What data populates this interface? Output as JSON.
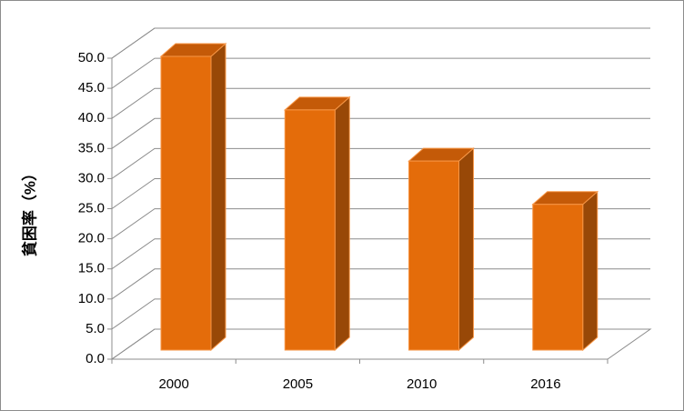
{
  "chart_data": {
    "type": "bar3d",
    "y_label": "貧困率（%）",
    "categories": [
      "2000",
      "2005",
      "2010",
      "2016"
    ],
    "values": [
      48.8,
      39.9,
      31.4,
      24.2
    ],
    "color": "#e46c0a",
    "ylim": [
      0,
      50
    ],
    "yticks": [
      {
        "value": 0,
        "label": "0.0"
      },
      {
        "value": 5,
        "label": "5.0"
      },
      {
        "value": 10,
        "label": "10.0"
      },
      {
        "value": 15,
        "label": "15.0"
      },
      {
        "value": 20,
        "label": "20.0"
      },
      {
        "value": 25,
        "label": "25.0"
      },
      {
        "value": 30,
        "label": "30.0"
      },
      {
        "value": 35,
        "label": "35.0"
      },
      {
        "value": 40,
        "label": "40.0"
      },
      {
        "value": 45,
        "label": "45.0"
      },
      {
        "value": 50,
        "label": "50.0"
      }
    ],
    "grid": true
  }
}
